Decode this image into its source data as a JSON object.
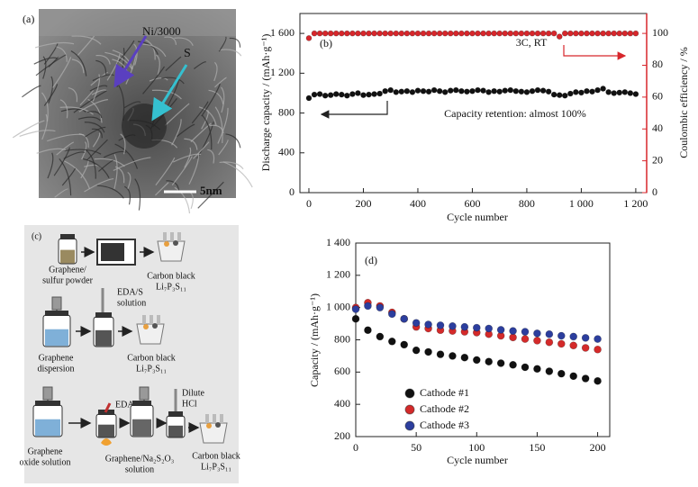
{
  "panel_a": {
    "label": "(a)",
    "annotation_1": "Ni/3000",
    "annotation_2": "S",
    "scale_bar": "5nm"
  },
  "panel_c": {
    "label": "(c)",
    "step1_input": [
      "Graphene/",
      "sulfur powder"
    ],
    "step1_output": [
      "Carbon black",
      "Li₇P₃S₁₁"
    ],
    "step2_reagent": [
      "EDA/S",
      "solution"
    ],
    "step2_input": [
      "Graphene",
      "dispersion"
    ],
    "step2_output": [
      "Carbon black",
      "Li₇P₃S₁₁"
    ],
    "step3_input": [
      "Graphene",
      "oxide solution"
    ],
    "step3_reagent": "EDA",
    "step3_middle": [
      "Graphene/Na₂S₂O₃",
      "solution"
    ],
    "step3_acid": [
      "Dilute",
      "HCl"
    ],
    "step3_output": [
      "Carbon black",
      "Li₇P₃S₁₁"
    ]
  },
  "chart_data": [
    {
      "type": "scatter",
      "xlabel": "Cycle number",
      "ylabel": "Discharge capacity / (mAh·g⁻¹)",
      "y2label": "Coulombic efficiency / %",
      "annotations": [
        "(b)",
        "3C, RT",
        "Capacity retention: almost 100%"
      ],
      "xlim": [
        -33,
        1240
      ],
      "xticks": [
        0,
        200,
        400,
        600,
        800,
        {
          "value": 1000,
          "label": "1 000"
        },
        {
          "value": 1200,
          "label": "1 200"
        }
      ],
      "ylim": [
        0,
        1800
      ],
      "yticks": [
        0,
        400,
        800,
        {
          "value": 1200,
          "label": "1 200"
        },
        {
          "value": 1600,
          "label": "1 600"
        }
      ],
      "y2lim": [
        0,
        112.5
      ],
      "y2ticks": [
        0,
        20,
        40,
        60,
        80,
        100
      ],
      "y2color": "#d7262b",
      "grid": false,
      "x": [
        0,
        20,
        40,
        60,
        80,
        100,
        120,
        140,
        160,
        180,
        200,
        220,
        240,
        260,
        280,
        300,
        320,
        340,
        360,
        380,
        400,
        420,
        440,
        460,
        480,
        500,
        520,
        540,
        560,
        580,
        600,
        620,
        640,
        660,
        680,
        700,
        720,
        740,
        760,
        780,
        800,
        820,
        840,
        860,
        880,
        900,
        920,
        940,
        960,
        980,
        1000,
        1020,
        1040,
        1060,
        1080,
        1100,
        1120,
        1140,
        1160,
        1180,
        1200
      ],
      "series": [
        {
          "color": "#111111",
          "values": [
            950,
            985,
            990,
            975,
            980,
            990,
            985,
            975,
            990,
            1000,
            980,
            985,
            990,
            995,
            1020,
            1030,
            1010,
            1015,
            1020,
            1010,
            1025,
            1020,
            1015,
            1030,
            1020,
            1010,
            1025,
            1030,
            1020,
            1015,
            1020,
            1030,
            1025,
            1010,
            1020,
            1015,
            1025,
            1030,
            1020,
            1015,
            1010,
            1020,
            1030,
            1025,
            1015,
            985,
            980,
            975,
            995,
            1010,
            1005,
            1020,
            1015,
            1030,
            1045,
            1010,
            1000,
            1005,
            1010,
            1000,
            990
          ]
        },
        {
          "color": "#d7262b",
          "axis": "y2",
          "values": [
            97,
            100,
            100,
            100,
            100,
            100,
            100,
            100,
            100,
            100,
            100,
            100,
            100,
            100,
            100,
            100,
            100,
            100,
            100,
            100,
            100,
            100,
            100,
            100,
            100,
            100,
            100,
            100,
            100,
            100,
            100,
            100,
            100,
            100,
            100,
            100,
            100,
            100,
            100,
            100,
            100,
            100,
            100,
            100,
            100,
            100,
            98,
            100,
            100,
            100,
            100,
            100,
            100,
            100,
            100,
            100,
            100,
            100,
            100,
            100,
            100
          ]
        }
      ]
    },
    {
      "type": "scatter",
      "xlabel": "Cycle number",
      "ylabel": "Capacity / (mAh·g⁻¹)",
      "annotations": [
        "(d)"
      ],
      "xlim": [
        0,
        210
      ],
      "xticks": [
        0,
        50,
        100,
        150,
        200
      ],
      "ylim": [
        200,
        1400
      ],
      "yticks": [
        200,
        400,
        600,
        800,
        {
          "value": 1000,
          "label": "1 000"
        },
        {
          "value": 1200,
          "label": "1 200"
        },
        {
          "value": 1400,
          "label": "1 400"
        }
      ],
      "grid": false,
      "legend": "lower right",
      "x": [
        0,
        10,
        20,
        30,
        40,
        50,
        60,
        70,
        80,
        90,
        100,
        110,
        120,
        130,
        140,
        150,
        160,
        170,
        180,
        190,
        200
      ],
      "series": [
        {
          "name": "Cathode #1",
          "color": "#111111",
          "values": [
            930,
            860,
            820,
            790,
            770,
            735,
            725,
            710,
            700,
            690,
            675,
            665,
            655,
            645,
            630,
            620,
            605,
            590,
            575,
            560,
            545
          ]
        },
        {
          "name": "Cathode #2",
          "color": "#d42a2a",
          "values": [
            1000,
            1030,
            1010,
            970,
            930,
            880,
            870,
            860,
            855,
            850,
            845,
            835,
            825,
            815,
            805,
            795,
            785,
            775,
            765,
            750,
            740
          ]
        },
        {
          "name": "Cathode #3",
          "color": "#2c3e9e",
          "values": [
            990,
            1010,
            1000,
            960,
            930,
            905,
            895,
            890,
            885,
            880,
            875,
            870,
            862,
            855,
            850,
            840,
            835,
            825,
            820,
            812,
            805
          ]
        }
      ]
    }
  ]
}
